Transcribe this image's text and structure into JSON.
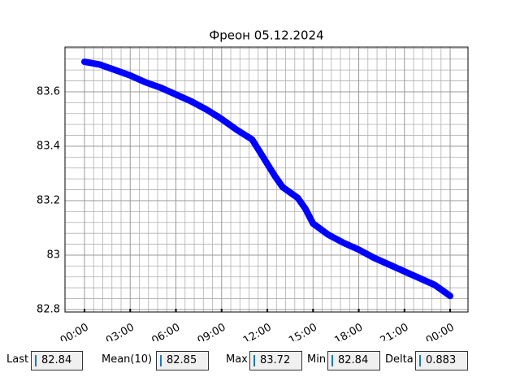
{
  "chart_data": {
    "type": "line",
    "title": "Фреон 05.12.2024",
    "x": [
      0,
      1,
      2,
      3,
      4,
      5,
      6,
      7,
      8,
      9,
      10,
      11,
      11.5,
      12,
      12.5,
      13,
      14,
      14.5,
      15,
      16,
      17,
      18,
      19,
      20,
      21,
      22,
      23,
      24
    ],
    "series": [
      {
        "name": "Фреон",
        "color": "#0000ff",
        "values": [
          83.71,
          83.7,
          83.68,
          83.66,
          83.635,
          83.615,
          83.59,
          83.565,
          83.535,
          83.5,
          83.46,
          83.425,
          83.38,
          83.335,
          83.29,
          83.25,
          83.21,
          83.17,
          83.116,
          83.075,
          83.045,
          83.02,
          82.99,
          82.965,
          82.94,
          82.915,
          82.89,
          82.85
        ]
      }
    ],
    "xlim": [
      -1.28,
      25.17
    ],
    "xticks": [
      {
        "value": 0,
        "label": "00:00"
      },
      {
        "value": 3,
        "label": "03:00"
      },
      {
        "value": 6,
        "label": "06:00"
      },
      {
        "value": 9,
        "label": "09:00"
      },
      {
        "value": 12,
        "label": "12:00"
      },
      {
        "value": 15,
        "label": "15:00"
      },
      {
        "value": 18,
        "label": "18:00"
      },
      {
        "value": 21,
        "label": "21:00"
      },
      {
        "value": 24,
        "label": "00:00"
      }
    ],
    "ylim": [
      82.791,
      83.764
    ],
    "yticks": [
      82.8,
      83.0,
      83.2,
      83.4,
      83.6
    ],
    "grid": true,
    "minor_grid": true
  },
  "stats": [
    {
      "label": "Last",
      "value": "82.84"
    },
    {
      "label": "Mean(10)",
      "value": "82.85"
    },
    {
      "label": "Max",
      "value": "83.72"
    },
    {
      "label": "Min",
      "value": "82.84"
    },
    {
      "label": "Delta",
      "value": "0.883"
    }
  ]
}
